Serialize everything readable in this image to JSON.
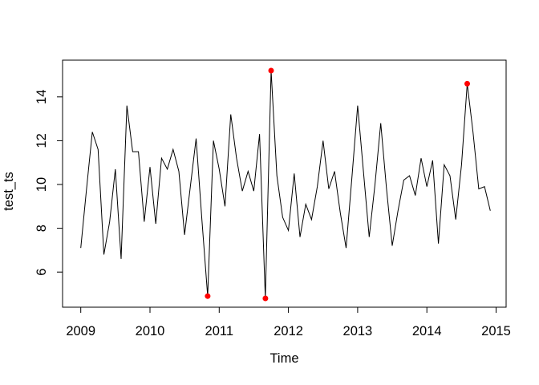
{
  "figure": {
    "background": "#FFFFFF"
  },
  "chart_data": {
    "type": "line",
    "title": "",
    "xlabel": "Time",
    "ylabel": "test_ts",
    "x_start": 2009,
    "frequency": 12,
    "xlim": [
      2008.76,
      2015.15
    ],
    "ylim": [
      4.4,
      15.7
    ],
    "grid": "off",
    "legend": "none",
    "x_ticks": [
      2009,
      2010,
      2011,
      2012,
      2013,
      2014,
      2015
    ],
    "y_ticks": [
      6,
      8,
      10,
      12,
      14
    ],
    "series": [
      {
        "name": "test_ts",
        "color": "#000000",
        "values": [
          7.1,
          9.8,
          12.4,
          11.6,
          6.8,
          8.3,
          10.7,
          6.6,
          13.6,
          11.5,
          11.5,
          8.3,
          10.8,
          8.2,
          11.2,
          10.7,
          11.6,
          10.6,
          7.7,
          9.9,
          12.1,
          8.4,
          4.9,
          12.0,
          10.7,
          9.0,
          13.2,
          11.2,
          9.7,
          10.6,
          9.7,
          12.3,
          4.8,
          15.2,
          10.4,
          8.5,
          7.9,
          10.5,
          7.6,
          9.1,
          8.4,
          9.9,
          12.0,
          9.8,
          10.6,
          8.7,
          7.1,
          10.3,
          13.6,
          10.6,
          7.6,
          10.0,
          12.8,
          9.8,
          7.2,
          8.8,
          10.2,
          10.4,
          9.5,
          11.2,
          9.9,
          11.1,
          7.3,
          10.9,
          10.4,
          8.4,
          10.9,
          14.6,
          12.4,
          9.8,
          9.9,
          8.8
        ]
      }
    ],
    "outliers": {
      "name": "flagged-outlier-points",
      "color": "#FF0000",
      "marker": "filled-circle",
      "points": [
        {
          "time": 2010.833,
          "value": 4.9
        },
        {
          "time": 2011.667,
          "value": 4.8
        },
        {
          "time": 2011.75,
          "value": 15.2
        },
        {
          "time": 2014.583,
          "value": 14.6
        }
      ]
    }
  },
  "colors": {
    "axis": "#000000",
    "line": "#000000",
    "outlier": "#FF0000",
    "background": "#FFFFFF"
  }
}
